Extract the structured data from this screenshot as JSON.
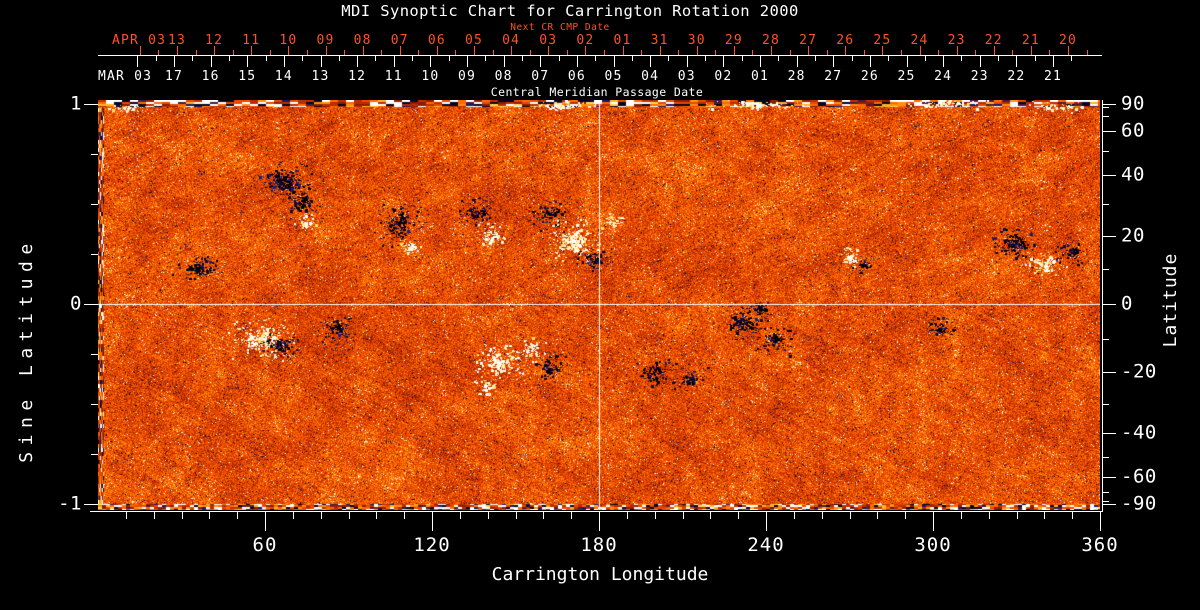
{
  "title": "MDI Synoptic Chart for Carrington Rotation 2000",
  "colors": {
    "background": "#000000",
    "axis": "#ffffff",
    "red_axis": "#ff5226"
  },
  "top_axis": {
    "next_label": "Next CR CMP Date",
    "next_month": "APR 03",
    "next_days": [
      "13",
      "12",
      "11",
      "10",
      "09",
      "08",
      "07",
      "06",
      "05",
      "04",
      "03",
      "02",
      "01",
      "31",
      "30",
      "29",
      "28",
      "27",
      "26",
      "25",
      "24",
      "23",
      "22",
      "21",
      "20"
    ],
    "cmp_label": "Central Meridian Passage Date",
    "cmp_month": "MAR 03",
    "cmp_days": [
      "17",
      "16",
      "15",
      "14",
      "13",
      "12",
      "11",
      "10",
      "09",
      "08",
      "07",
      "06",
      "05",
      "04",
      "03",
      "02",
      "01",
      "28",
      "27",
      "26",
      "25",
      "24",
      "23",
      "22",
      "21"
    ]
  },
  "left_axis": {
    "label": "Sine Latitude",
    "ticks": [
      "1",
      "0",
      "-1"
    ],
    "minor_step": 0.25
  },
  "right_axis": {
    "label": "Latitude",
    "ticks": [
      "90",
      "60",
      "40",
      "20",
      "0",
      "-20",
      "-40",
      "-60",
      "-90"
    ],
    "minor_step_deg": 10
  },
  "bottom_axis": {
    "label": "Carrington Longitude",
    "ticks": [
      "60",
      "120",
      "180",
      "240",
      "300",
      "360"
    ],
    "minor_step_deg": 10
  },
  "chart_data": {
    "type": "heatmap",
    "title": "MDI Synoptic Chart for Carrington Rotation 2000",
    "field": "photospheric line-of-sight magnetic field (synoptic magnetogram, noise-textured)",
    "x": {
      "label": "Carrington Longitude",
      "range": [
        0,
        360
      ],
      "major_ticks": [
        60,
        120,
        180,
        240,
        300,
        360
      ],
      "minor_step": 10
    },
    "y_left": {
      "label": "Sine Latitude",
      "range": [
        -1,
        1
      ],
      "ticks": [
        1,
        0,
        -1
      ],
      "minor_step": 0.25
    },
    "y_right": {
      "label": "Latitude",
      "ticks_deg": [
        90,
        60,
        40,
        20,
        0,
        -20,
        -40,
        -60,
        -90
      ],
      "minor_step_deg": 10
    },
    "top_x_red": {
      "label": "Next CR CMP Date",
      "month": "APR 03",
      "days": [
        "13",
        "12",
        "11",
        "10",
        "09",
        "08",
        "07",
        "06",
        "05",
        "04",
        "03",
        "02",
        "01",
        "31",
        "30",
        "29",
        "28",
        "27",
        "26",
        "25",
        "24",
        "23",
        "22",
        "21",
        "20"
      ]
    },
    "top_x_white": {
      "label": "Central Meridian Passage Date",
      "month": "MAR 03",
      "days": [
        "17",
        "16",
        "15",
        "14",
        "13",
        "12",
        "11",
        "10",
        "09",
        "08",
        "07",
        "06",
        "05",
        "04",
        "03",
        "02",
        "01",
        "28",
        "27",
        "26",
        "25",
        "24",
        "23",
        "22",
        "21"
      ]
    },
    "crosshair": {
      "longitude_deg": 180,
      "sine_latitude": 0
    },
    "noise_seed": 20031,
    "palette": [
      [
        0.05,
        "#05051e"
      ],
      [
        0.1,
        "#181868"
      ],
      [
        0.16,
        "#4a1a40"
      ],
      [
        0.28,
        "#8c1e00"
      ],
      [
        0.46,
        "#bb2d00"
      ],
      [
        0.66,
        "#e84800"
      ],
      [
        0.8,
        "#ff6a00"
      ],
      [
        0.89,
        "#ff9012"
      ],
      [
        0.945,
        "#ffb428"
      ],
      [
        0.975,
        "#ffd75a"
      ],
      [
        9,
        "#ffffff"
      ]
    ],
    "region_colors": {
      "n": [
        "#000000",
        "#0b0b3c",
        "#1c1c78",
        "#05051e"
      ],
      "p": [
        "#ffffff",
        "#fdf2c4",
        "#ffe070",
        "#ffffff"
      ]
    },
    "active_regions": [
      [
        0.185,
        0.2,
        16,
        12,
        "n"
      ],
      [
        0.205,
        0.25,
        11,
        9,
        "n"
      ],
      [
        0.205,
        0.3,
        7,
        6,
        "p"
      ],
      [
        0.3,
        0.3,
        13,
        13,
        "n"
      ],
      [
        0.312,
        0.36,
        7,
        6,
        "p"
      ],
      [
        0.378,
        0.28,
        11,
        9,
        "n"
      ],
      [
        0.392,
        0.33,
        10,
        8,
        "p"
      ],
      [
        0.448,
        0.28,
        12,
        9,
        "n"
      ],
      [
        0.475,
        0.345,
        17,
        13,
        "p"
      ],
      [
        0.495,
        0.39,
        10,
        8,
        "n"
      ],
      [
        0.515,
        0.3,
        7,
        5,
        "p"
      ],
      [
        0.1,
        0.41,
        14,
        8,
        "n"
      ],
      [
        0.165,
        0.585,
        19,
        12,
        "p"
      ],
      [
        0.182,
        0.6,
        12,
        8,
        "n"
      ],
      [
        0.24,
        0.555,
        11,
        8,
        "n"
      ],
      [
        0.4,
        0.64,
        15,
        12,
        "p"
      ],
      [
        0.432,
        0.61,
        9,
        7,
        "p"
      ],
      [
        0.452,
        0.655,
        10,
        8,
        "n"
      ],
      [
        0.39,
        0.7,
        8,
        6,
        "p"
      ],
      [
        0.555,
        0.665,
        12,
        8,
        "n"
      ],
      [
        0.59,
        0.68,
        10,
        7,
        "n"
      ],
      [
        0.645,
        0.545,
        14,
        10,
        "n"
      ],
      [
        0.675,
        0.585,
        12,
        8,
        "n"
      ],
      [
        0.66,
        0.51,
        8,
        6,
        "n"
      ],
      [
        0.75,
        0.385,
        8,
        6,
        "p"
      ],
      [
        0.764,
        0.4,
        7,
        5,
        "n"
      ],
      [
        0.84,
        0.56,
        11,
        7,
        "n"
      ],
      [
        0.915,
        0.35,
        14,
        10,
        "n"
      ],
      [
        0.945,
        0.4,
        12,
        8,
        "p"
      ],
      [
        0.973,
        0.37,
        10,
        8,
        "n"
      ],
      [
        0.462,
        0.015,
        26,
        3,
        "p"
      ],
      [
        0.657,
        0.012,
        30,
        3,
        "p"
      ],
      [
        0.845,
        0.01,
        26,
        3,
        "p"
      ],
      [
        0.956,
        0.017,
        17,
        3,
        "p"
      ],
      [
        0.03,
        0.02,
        12,
        3,
        "p"
      ]
    ]
  }
}
